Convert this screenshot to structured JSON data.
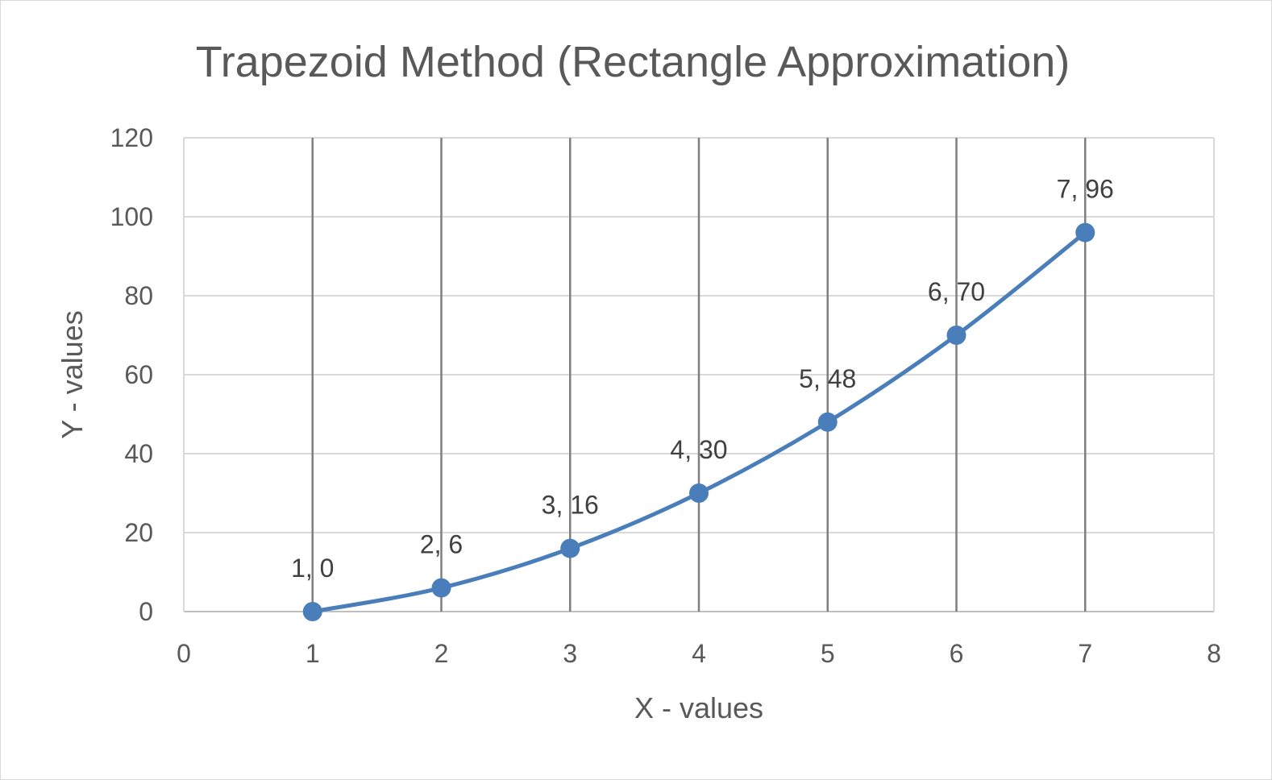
{
  "chart_data": {
    "type": "scatter",
    "title": "Trapezoid Method (Rectangle Approximation)",
    "xlabel": "X - values",
    "ylabel": "Y - values",
    "xlim": [
      0,
      8
    ],
    "ylim": [
      0,
      120
    ],
    "x_ticks": [
      "0",
      "1",
      "2",
      "3",
      "4",
      "5",
      "6",
      "7",
      "8"
    ],
    "y_ticks": [
      "0",
      "20",
      "40",
      "60",
      "80",
      "100",
      "120"
    ],
    "grid": "major horizontal and vertical gridlines",
    "line_style": "smoothed line with circle markers",
    "series": [
      {
        "x": [
          1,
          2,
          3,
          4,
          5,
          6,
          7
        ],
        "y": [
          0,
          6,
          16,
          30,
          48,
          70,
          96
        ],
        "color": "#4a7ebb",
        "data_labels": [
          "1, 0",
          "2, 6",
          "3, 16",
          "4, 30",
          "5, 48",
          "6, 70",
          "7, 96"
        ]
      }
    ]
  }
}
